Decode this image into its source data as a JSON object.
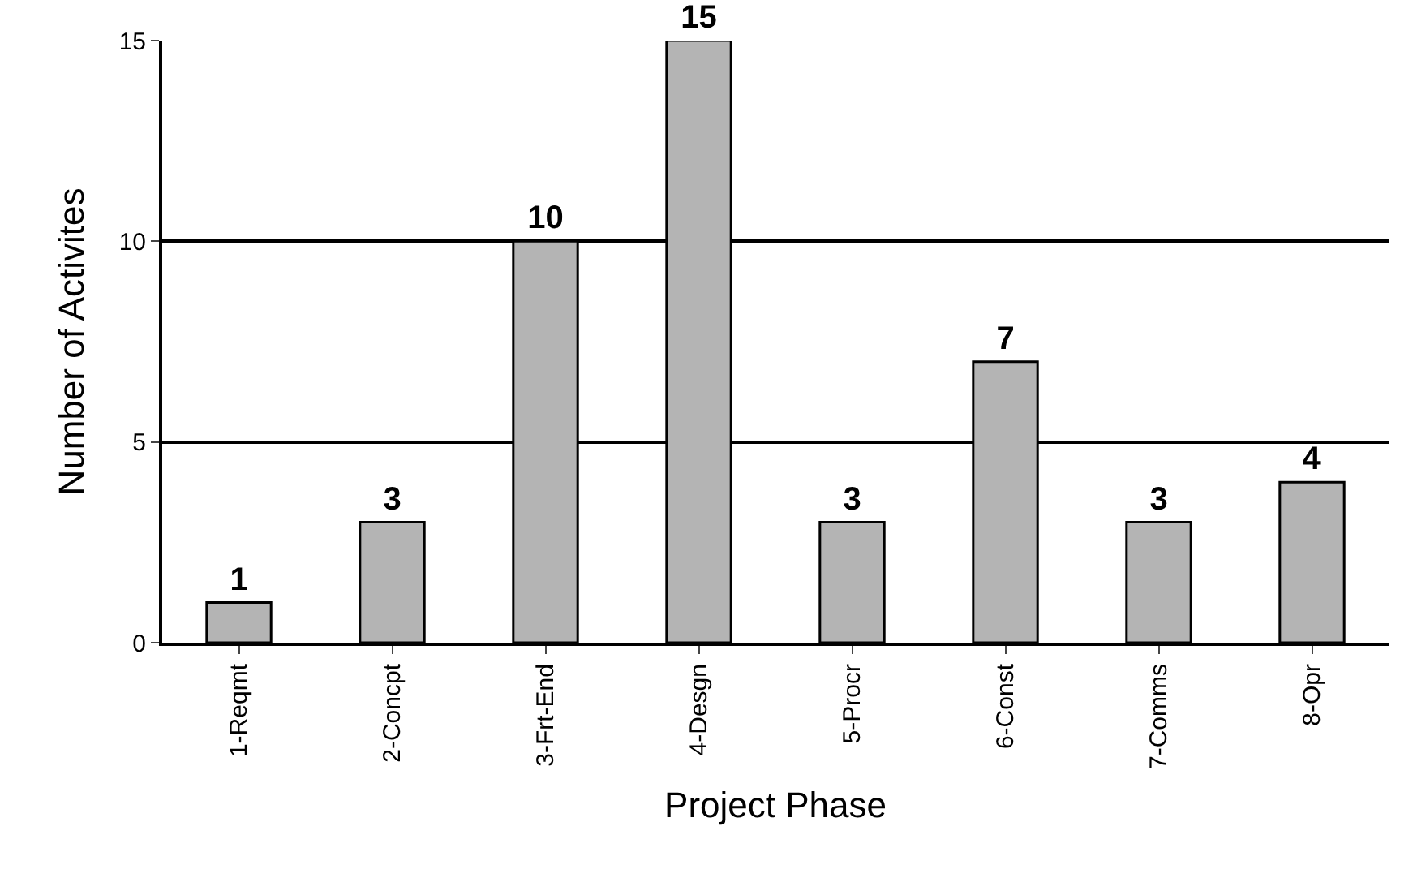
{
  "chart_data": {
    "type": "bar",
    "xlabel": "Project Phase",
    "ylabel": "Number of Activites",
    "categories": [
      "1-Reqmt",
      "2-Concpt",
      "3-Frt-End",
      "4-Desgn",
      "5-Procr",
      "6-Const",
      "7-Comms",
      "8-Opr"
    ],
    "values": [
      1,
      3,
      10,
      15,
      3,
      7,
      3,
      4
    ],
    "color": "#b4b4b4",
    "ylim": [
      0,
      15
    ],
    "yticks": [
      0,
      5,
      10,
      15
    ],
    "grid": "y",
    "data_labels": true
  }
}
